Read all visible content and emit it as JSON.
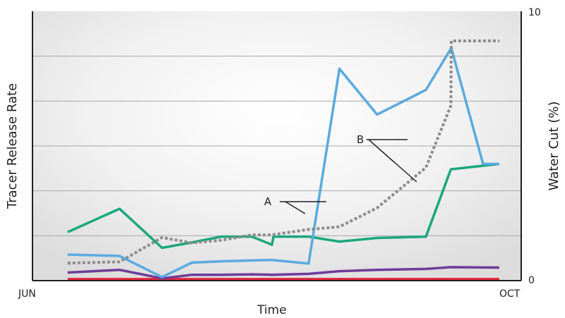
{
  "chart_data": {
    "type": "line",
    "title": "",
    "xlabel": "Time",
    "ylabel_left": "Tracer Release Rate",
    "ylabel_right": "Water Cut (%)",
    "x_ticks": [
      "JUN",
      "OCT"
    ],
    "right_ticks": [
      "0",
      "10"
    ],
    "right_ylim": [
      0,
      10
    ],
    "xlim": [
      0,
      100
    ],
    "ylim": [
      0,
      6
    ],
    "grid": true,
    "annotations": [
      {
        "text": "A",
        "points_to_series": [
          "blue-tracer",
          "water-cut"
        ]
      },
      {
        "text": "B",
        "points_to_series": [
          "blue-tracer",
          "green-tracer",
          "water-cut"
        ]
      }
    ],
    "series": [
      {
        "id": "water-cut",
        "axis": "right",
        "style": "dotted",
        "color": "#8c8c8c",
        "points": [
          [
            7.2,
            0.65
          ],
          [
            17.8,
            0.7
          ],
          [
            26.5,
            1.6
          ],
          [
            32.6,
            1.4
          ],
          [
            38.6,
            1.5
          ],
          [
            44.9,
            1.7
          ],
          [
            49.0,
            1.7
          ],
          [
            56.5,
            1.9
          ],
          [
            62.8,
            2.0
          ],
          [
            70.5,
            2.7
          ],
          [
            80.5,
            4.2
          ],
          [
            85.6,
            6.5
          ],
          [
            85.7,
            8.9
          ],
          [
            95.5,
            8.9
          ]
        ]
      },
      {
        "id": "blue-tracer",
        "color": "#5aaade",
        "points": [
          [
            7.2,
            0.58
          ],
          [
            17.8,
            0.55
          ],
          [
            26.5,
            0.08
          ],
          [
            32.6,
            0.4
          ],
          [
            38.6,
            0.43
          ],
          [
            44.9,
            0.45
          ],
          [
            49.0,
            0.46
          ],
          [
            56.5,
            0.38
          ],
          [
            62.8,
            4.72
          ],
          [
            70.5,
            3.7
          ],
          [
            77.8,
            4.1
          ],
          [
            80.5,
            4.25
          ],
          [
            85.7,
            5.18
          ],
          [
            92.2,
            2.6
          ],
          [
            95.5,
            2.6
          ]
        ]
      },
      {
        "id": "green-tracer",
        "color": "#1aa77b",
        "points": [
          [
            7.2,
            1.08
          ],
          [
            17.8,
            1.6
          ],
          [
            26.5,
            0.73
          ],
          [
            32.6,
            0.85
          ],
          [
            38.6,
            0.98
          ],
          [
            44.9,
            0.98
          ],
          [
            49.0,
            0.8
          ],
          [
            49.3,
            0.98
          ],
          [
            56.5,
            0.98
          ],
          [
            62.8,
            0.87
          ],
          [
            70.5,
            0.95
          ],
          [
            80.5,
            0.98
          ],
          [
            85.6,
            2.48
          ],
          [
            95.5,
            2.6
          ]
        ]
      },
      {
        "id": "purple-tracer",
        "color": "#6d3c98",
        "points": [
          [
            7.2,
            0.18
          ],
          [
            17.8,
            0.24
          ],
          [
            26.5,
            0.05
          ],
          [
            32.6,
            0.13
          ],
          [
            38.6,
            0.13
          ],
          [
            44.9,
            0.14
          ],
          [
            49.0,
            0.13
          ],
          [
            56.5,
            0.15
          ],
          [
            62.8,
            0.21
          ],
          [
            70.5,
            0.24
          ],
          [
            80.5,
            0.26
          ],
          [
            85.6,
            0.3
          ],
          [
            95.5,
            0.29
          ]
        ]
      },
      {
        "id": "red-tracer",
        "color": "#e2243b",
        "points": [
          [
            7.2,
            0.03
          ],
          [
            95.5,
            0.03
          ]
        ]
      }
    ]
  }
}
